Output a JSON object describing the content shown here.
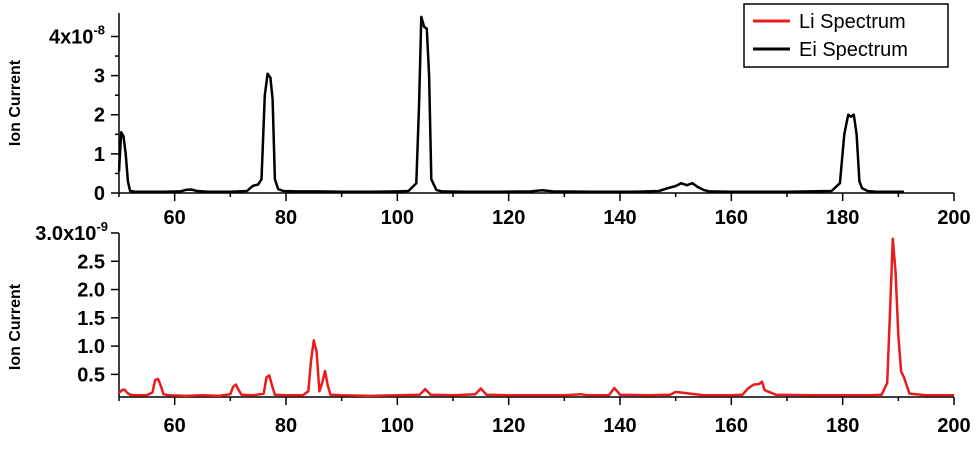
{
  "chart_data": [
    {
      "type": "line",
      "ylabel": "Ion Current",
      "xlim": [
        50,
        200
      ],
      "ylim": [
        0,
        4.6
      ],
      "y_multiplier_label": "x10",
      "y_multiplier_exp": "-8",
      "x_ticks": [
        "60",
        "80",
        "100",
        "120",
        "140",
        "160",
        "180",
        "200"
      ],
      "y_ticks": [
        "0",
        "1",
        "2",
        "3",
        "4"
      ],
      "series": [
        {
          "name": "Ei Spectrum",
          "color": "#000000",
          "x": [
            50,
            50.4,
            50.8,
            51.2,
            51.6,
            52,
            52.5,
            53,
            55,
            58,
            61,
            62,
            63,
            64,
            66,
            70,
            73,
            74,
            75,
            75.6,
            76.2,
            76.7,
            77.2,
            77.6,
            78,
            78.6,
            79.5,
            82,
            86,
            90,
            95,
            100,
            102,
            103.4,
            103.9,
            104.3,
            104.8,
            105.3,
            105.7,
            106.1,
            106.6,
            107,
            108,
            112,
            118,
            124,
            126,
            128,
            135,
            142,
            147,
            148.5,
            150,
            151,
            152,
            153,
            154,
            155,
            156,
            160,
            170,
            178,
            179.5,
            180.3,
            181,
            181.5,
            182,
            182.5,
            183,
            183.5,
            184.5,
            186,
            191
          ],
          "values": [
            0.55,
            1.55,
            1.45,
            1.0,
            0.3,
            0.05,
            0.04,
            0.03,
            0.03,
            0.03,
            0.04,
            0.08,
            0.09,
            0.05,
            0.03,
            0.03,
            0.05,
            0.18,
            0.22,
            0.35,
            2.5,
            3.05,
            2.95,
            2.4,
            0.35,
            0.1,
            0.05,
            0.04,
            0.04,
            0.03,
            0.03,
            0.04,
            0.05,
            0.25,
            2.2,
            4.5,
            4.25,
            4.2,
            3.0,
            0.35,
            0.2,
            0.08,
            0.04,
            0.03,
            0.03,
            0.04,
            0.07,
            0.04,
            0.03,
            0.03,
            0.05,
            0.12,
            0.18,
            0.25,
            0.2,
            0.25,
            0.15,
            0.08,
            0.04,
            0.03,
            0.03,
            0.05,
            0.25,
            1.5,
            2.0,
            1.95,
            2.0,
            1.5,
            0.3,
            0.12,
            0.05,
            0.03,
            0.03
          ]
        }
      ]
    },
    {
      "type": "line",
      "ylabel": "Ion Current",
      "xlim": [
        50,
        200
      ],
      "ylim": [
        0.1,
        3.0
      ],
      "y_multiplier_label": "x10",
      "y_multiplier_exp": "-9",
      "x_ticks": [
        "60",
        "80",
        "100",
        "120",
        "140",
        "160",
        "180",
        "200"
      ],
      "y_ticks": [
        "0.5",
        "1.0",
        "1.5",
        "2.0",
        "2.5",
        "3.0"
      ],
      "series": [
        {
          "name": "Li Spectrum",
          "color": "#e81c1c",
          "x": [
            50,
            50.5,
            51,
            51.5,
            52,
            53,
            55,
            56,
            56.5,
            57,
            57.5,
            58,
            59,
            62,
            65,
            68,
            70,
            70.5,
            71,
            71.5,
            72,
            74,
            76,
            76.5,
            77,
            77.5,
            78,
            80,
            83,
            84,
            84.5,
            85,
            85.5,
            86,
            86.5,
            87,
            87.5,
            88,
            90,
            95,
            100,
            104,
            105,
            106,
            110,
            114,
            115,
            116,
            120,
            125,
            130,
            133,
            134,
            138,
            139,
            140,
            145,
            149,
            150,
            155,
            160,
            162,
            163,
            164,
            165,
            165.5,
            166,
            168,
            175,
            185,
            187,
            188,
            188.5,
            189,
            189.5,
            190,
            190.5,
            191,
            192,
            195,
            200
          ],
          "values": [
            0.17,
            0.22,
            0.23,
            0.17,
            0.14,
            0.13,
            0.13,
            0.18,
            0.4,
            0.42,
            0.3,
            0.15,
            0.13,
            0.12,
            0.13,
            0.12,
            0.15,
            0.28,
            0.32,
            0.22,
            0.14,
            0.13,
            0.16,
            0.45,
            0.48,
            0.3,
            0.14,
            0.13,
            0.13,
            0.2,
            0.75,
            1.1,
            0.9,
            0.2,
            0.35,
            0.56,
            0.3,
            0.14,
            0.13,
            0.12,
            0.13,
            0.14,
            0.24,
            0.14,
            0.13,
            0.15,
            0.25,
            0.14,
            0.13,
            0.13,
            0.13,
            0.15,
            0.13,
            0.13,
            0.26,
            0.14,
            0.13,
            0.14,
            0.19,
            0.13,
            0.13,
            0.14,
            0.25,
            0.32,
            0.33,
            0.37,
            0.22,
            0.14,
            0.13,
            0.13,
            0.14,
            0.35,
            1.6,
            2.9,
            2.3,
            1.2,
            0.55,
            0.45,
            0.16,
            0.13,
            0.13
          ]
        }
      ]
    }
  ],
  "legend": [
    {
      "label": "Li Spectrum",
      "color": "#e81c1c"
    },
    {
      "label": "Ei Spectrum",
      "color": "#000000"
    }
  ]
}
